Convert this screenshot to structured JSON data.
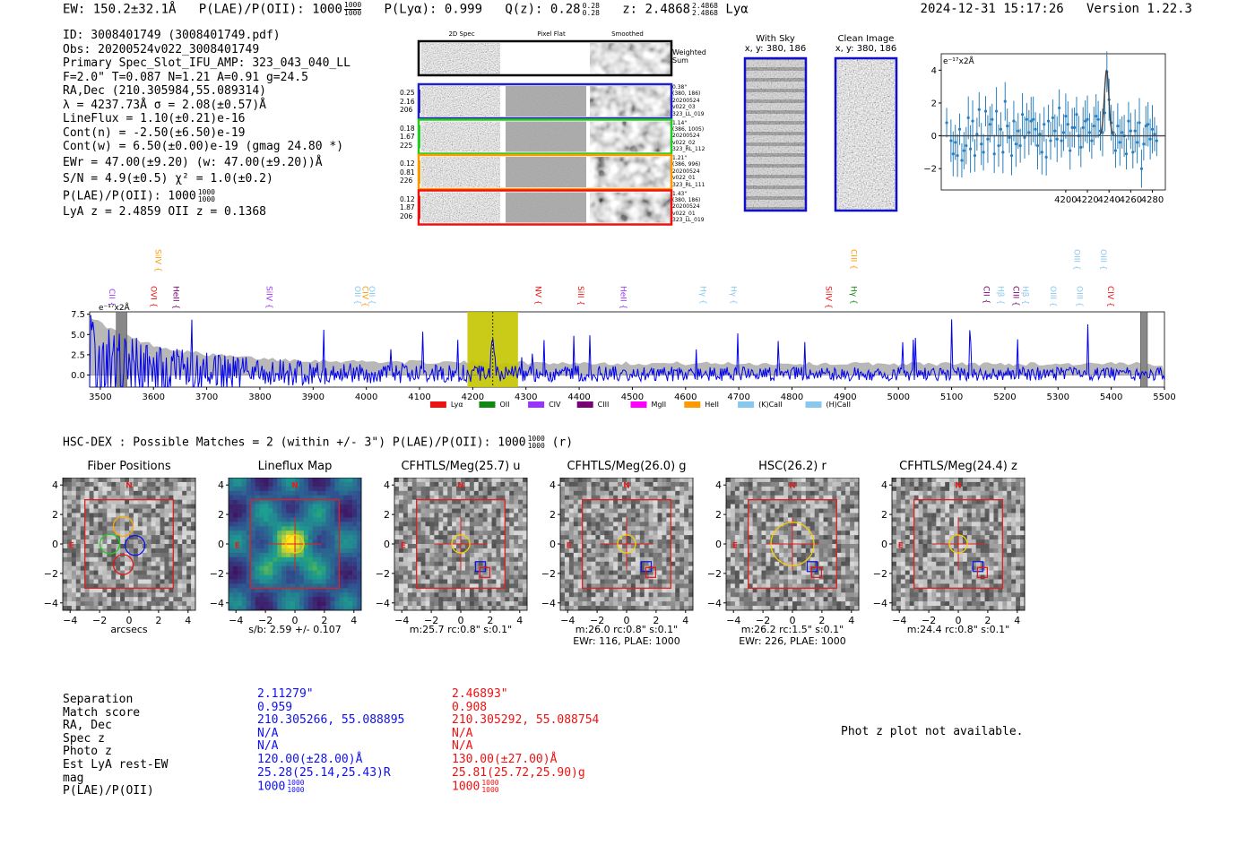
{
  "header": {
    "ew": "EW: 150.2±32.1Å",
    "plae_label": "P(LAE)/P(OII): 1000",
    "plae_frac_top": "1000",
    "plae_frac_bot": "1000",
    "plya": "P(Lyα): 0.999",
    "qz": "Q(z): 0.28",
    "qz_top": "0.28",
    "qz_bot": "0.28",
    "z": "z: 2.4868",
    "z_top": "2.4868",
    "z_bot": "2.4868",
    "line": "Lyα",
    "timestamp": "2024-12-31 15:17:26",
    "version": "Version 1.22.3"
  },
  "info": {
    "lines": [
      "ID: 3008401749 (3008401749.pdf)",
      "Obs: 20200524v022_3008401749",
      "Primary Spec_Slot_IFU_AMP: 323_043_040_LL",
      "F=2.0\"  T=0.087  N=1.21  A=0.91  g=24.5",
      "RA,Dec (210.305984,55.089314)",
      "λ = 4237.73Å   σ = 2.08(±0.57)Å",
      "LineFlux = 1.10(±0.21)e-16",
      "Cont(n) = -2.50(±6.50)e-19",
      "Cont(w) = 6.50(±0.00)e-19 (gmag 24.80 *)",
      "EWr = 47.00(±9.20) (w: 47.00(±9.20))Å",
      "S/N = 4.9(±0.5)  χ² = 1.0(±0.2)"
    ],
    "plae_line": "P(LAE)/P(OII): 1000",
    "plae_top": "1000",
    "plae_bot": "1000",
    "z_line": "LyA z = 2.4859  OII z = 0.1368"
  },
  "cutouts": {
    "col_headers": [
      "2D Spec",
      "Pixel Flat",
      "Smoothed"
    ],
    "weighted_label": "Weighted\nSum",
    "rows": [
      {
        "color": "#1f1fcc",
        "left": [
          "0.25",
          "2.16",
          "206"
        ],
        "right": [
          "0.38\"",
          "(380, 186)",
          "20200524",
          "v022_03",
          "323_LL_019"
        ]
      },
      {
        "color": "#22cc22",
        "left": [
          "0.18",
          "1.67",
          "225"
        ],
        "right": [
          "1.14\"",
          "(386, 1005)",
          "20200524",
          "v022_02",
          "323_RL_112"
        ]
      },
      {
        "color": "#ff9900",
        "left": [
          "0.12",
          "0.81",
          "226"
        ],
        "right": [
          "1.21\"",
          "(386, 996)",
          "20200524",
          "v022_01",
          "323_RL_111"
        ]
      },
      {
        "color": "#ee1111",
        "left": [
          "0.12",
          "1.87",
          "206"
        ],
        "right": [
          "1.43\"",
          "(380, 186)",
          "20200524",
          "v022_01",
          "323_LL_019"
        ]
      }
    ],
    "with_sky_title": "With Sky",
    "with_sky_sub": "x, y: 380, 186",
    "clean_title": "Clean Image",
    "clean_sub": "x, y: 380, 186"
  },
  "chart_data": [
    {
      "type": "scatter",
      "title": "",
      "scale_label": "e⁻¹⁷x2Å",
      "xlim": [
        4085,
        4292
      ],
      "ylim": [
        -3.3,
        5.0
      ],
      "xticks": [
        "4200",
        "4220",
        "4240",
        "4260",
        "4280"
      ],
      "yticks": [
        "-2",
        "0",
        "2",
        "4"
      ],
      "points": {
        "x": [
          4090,
          4094,
          4096,
          4098,
          4100,
          4102,
          4104,
          4106,
          4108,
          4110,
          4112,
          4114,
          4116,
          4118,
          4120,
          4122,
          4124,
          4126,
          4128,
          4130,
          4132,
          4134,
          4136,
          4138,
          4140,
          4142,
          4144,
          4146,
          4148,
          4150,
          4152,
          4154,
          4156,
          4158,
          4160,
          4162,
          4164,
          4166,
          4168,
          4170,
          4172,
          4174,
          4176,
          4178,
          4180,
          4182,
          4184,
          4186,
          4188,
          4190,
          4192,
          4194,
          4196,
          4198,
          4200,
          4202,
          4204,
          4206,
          4208,
          4210,
          4212,
          4214,
          4216,
          4218,
          4220,
          4222,
          4224,
          4226,
          4228,
          4230,
          4232,
          4234,
          4236,
          4238,
          4240,
          4242,
          4244,
          4246,
          4248,
          4250,
          4252,
          4254,
          4256,
          4258,
          4260,
          4262,
          4264,
          4266,
          4268,
          4270,
          4272,
          4274,
          4276,
          4278,
          4280,
          4282,
          4284
        ],
        "y": [
          0.8,
          -0.3,
          -1.1,
          -0.4,
          -1.2,
          0.4,
          -1.5,
          -0.9,
          -0.6,
          1.1,
          -0.8,
          0.9,
          -1.2,
          0.1,
          1.6,
          -0.5,
          -1.0,
          1.5,
          -0.2,
          0.7,
          1.0,
          -1.1,
          1.5,
          -0.6,
          0.4,
          -1.0,
          2.1,
          0.6,
          -0.1,
          -1.2,
          0.9,
          -0.5,
          0.3,
          -0.6,
          1.3,
          -0.1,
          1.0,
          0.2,
          0.9,
          1.0,
          0.4,
          -0.6,
          0.1,
          -1.0,
          0.7,
          -1.3,
          0.9,
          -0.3,
          1.1,
          0.3,
          -0.2,
          1.7,
          -0.3,
          0.2,
          1.2,
          0.7,
          -0.9,
          0.5,
          0.5,
          1.3,
          0.0,
          -0.7,
          0.5,
          0.9,
          1.0,
          0.2,
          -0.3,
          0.6,
          1.2,
          1.0,
          0.3,
          0.2,
          1.4,
          3.9,
          2.2,
          0.8,
          0.2,
          -0.9,
          0.6,
          -0.4,
          0.2,
          0.0,
          -1.1,
          0.9,
          0.3,
          -1.0,
          0.3,
          -0.4,
          0.8,
          -2.0,
          -0.5,
          0.6,
          0.7,
          -0.2,
          0.4,
          0.1,
          -0.3
        ]
      },
      "fit": {
        "center": 4237.7,
        "sigma": 2.08,
        "amplitude": 4.0,
        "continuum": 0.0
      }
    },
    {
      "type": "line",
      "title": "",
      "scale_label": "e⁻¹⁷x2Å",
      "xlim": [
        3480,
        5500
      ],
      "ylim": [
        -1.5,
        7.8
      ],
      "xticks": [
        "3500",
        "3600",
        "3700",
        "3800",
        "3900",
        "4000",
        "4100",
        "4200",
        "4300",
        "4400",
        "4500",
        "4600",
        "4700",
        "4800",
        "4900",
        "5000",
        "5100",
        "5200",
        "5300",
        "5400",
        "5500"
      ],
      "yticks": [
        "0.0",
        "2.5",
        "5.0",
        "7.5"
      ],
      "highlight_range": [
        4190,
        4285
      ],
      "line_marker": 4237.7,
      "masked_bands": [
        [
          3530,
          3550
        ],
        [
          5455,
          5468
        ]
      ],
      "legend": [
        {
          "label": "Lyα",
          "color": "#ee1111"
        },
        {
          "label": "OII",
          "color": "#118811"
        },
        {
          "label": "CIV",
          "color": "#9933ff"
        },
        {
          "label": "CIII",
          "color": "#770077"
        },
        {
          "label": "MgII",
          "color": "#ff00ff"
        },
        {
          "label": "HeII",
          "color": "#ff9900"
        },
        {
          "label": "(K)CaII",
          "color": "#88c8ee"
        },
        {
          "label": "(H)CaII",
          "color": "#88c8ee"
        }
      ],
      "line_labels": [
        {
          "name": "CII",
          "x": 3521,
          "color": "#9933ff",
          "row": 2
        },
        {
          "name": "SiIV",
          "x": 3608,
          "color": "#ff9900",
          "row": 0
        },
        {
          "name": "OVI",
          "x": 3600,
          "color": "#ee1111",
          "row": 1
        },
        {
          "name": "HeII",
          "x": 3642,
          "color": "#770077",
          "row": 1
        },
        {
          "name": "SiIV",
          "x": 3817,
          "color": "#9933ff",
          "row": 1
        },
        {
          "name": "OII",
          "x": 3983,
          "color": "#88c8ee",
          "row": 1
        },
        {
          "name": "CIV",
          "x": 3997,
          "color": "#ff9900",
          "row": 1
        },
        {
          "name": "OII",
          "x": 4010,
          "color": "#88c8ee",
          "row": 1
        },
        {
          "name": "NV",
          "x": 4322,
          "color": "#ee1111",
          "row": 1
        },
        {
          "name": "SiII",
          "x": 4402,
          "color": "#ee1111",
          "row": 1
        },
        {
          "name": "HeII",
          "x": 4482,
          "color": "#9933ff",
          "row": 1
        },
        {
          "name": "Hγ",
          "x": 4632,
          "color": "#88c8ee",
          "row": 1
        },
        {
          "name": "Hγ",
          "x": 4690,
          "color": "#88c8ee",
          "row": 1
        },
        {
          "name": "SiIV",
          "x": 4868,
          "color": "#ee1111",
          "row": 1
        },
        {
          "name": "CIII",
          "x": 4915,
          "color": "#ff9900",
          "row": 0
        },
        {
          "name": "Hγ",
          "x": 4915,
          "color": "#118811",
          "row": 1
        },
        {
          "name": "CII",
          "x": 5165,
          "color": "#770077",
          "row": 1
        },
        {
          "name": "Hβ",
          "x": 5192,
          "color": "#88c8ee",
          "row": 1
        },
        {
          "name": "CIII",
          "x": 5220,
          "color": "#770077",
          "row": 1
        },
        {
          "name": "Hβ",
          "x": 5238,
          "color": "#88c8ee",
          "row": 1
        },
        {
          "name": "OIII",
          "x": 5290,
          "color": "#88c8ee",
          "row": 1
        },
        {
          "name": "OIII",
          "x": 5335,
          "color": "#88c8ee",
          "row": 0
        },
        {
          "name": "OIII",
          "x": 5340,
          "color": "#88c8ee",
          "row": 1
        },
        {
          "name": "OIII",
          "x": 5385,
          "color": "#88c8ee",
          "row": 0
        },
        {
          "name": "CIV",
          "x": 5398,
          "color": "#ee1111",
          "row": 1
        }
      ]
    }
  ],
  "hsc": {
    "title": "HSC-DEX : Possible Matches = 2 (within +/- 3\")  P(LAE)/P(OII): 1000",
    "frac_top": "1000",
    "frac_bot": "1000",
    "suffix": "(r)",
    "panels": [
      {
        "title": "Fiber Positions",
        "cap1": "arcsecs",
        "cap2": "",
        "ticks": [
          "4",
          "2",
          "0",
          "−2",
          "−4"
        ],
        "xticks": [
          "−4",
          "−2",
          "0",
          "2",
          "4"
        ],
        "n_label": "N",
        "e_label": "E"
      },
      {
        "title": "Lineflux Map",
        "cap1": "s/b: 2.59 +/- 0.107",
        "cap2": "",
        "ticks": [
          "4",
          "2",
          "0",
          "−2",
          "−4"
        ],
        "xticks": [
          "−4",
          "−2",
          "0",
          "2",
          "4"
        ],
        "n_label": "N",
        "e_label": "E"
      },
      {
        "title": "CFHTLS/Meg(25.7) u",
        "cap1": "m:25.7 rc:0.8\"  s:0.1\"",
        "cap2": "",
        "ticks": [
          "4",
          "2",
          "0",
          "−2",
          "−4"
        ],
        "xticks": [
          "−4",
          "−2",
          "0",
          "2",
          "4"
        ],
        "n_label": "N",
        "e_label": "E"
      },
      {
        "title": "CFHTLS/Meg(26.0) g",
        "cap1": "m:26.0 rc:0.8\"  s:0.1\"",
        "cap2": "EWr: 116, PLAE: 1000",
        "ticks": [
          "4",
          "2",
          "0",
          "−2",
          "−4"
        ],
        "xticks": [
          "−4",
          "−2",
          "0",
          "2",
          "4"
        ],
        "n_label": "N",
        "e_label": "E"
      },
      {
        "title": "HSC(26.2) r",
        "cap1": "m:26.2 rc:1.5\"  s:0.1\"",
        "cap2": "EWr: 226, PLAE: 1000",
        "ticks": [
          "4",
          "2",
          "0",
          "−2",
          "−4"
        ],
        "xticks": [
          "−4",
          "−2",
          "0",
          "2",
          "4"
        ],
        "n_label": "N",
        "e_label": "E"
      },
      {
        "title": "CFHTLS/Meg(24.4) z",
        "cap1": "m:24.4 rc:0.8\"  s:0.1\"",
        "cap2": "",
        "ticks": [
          "4",
          "2",
          "0",
          "−2",
          "−4"
        ],
        "xticks": [
          "−4",
          "−2",
          "0",
          "2",
          "4"
        ],
        "n_label": "N",
        "e_label": "E"
      }
    ]
  },
  "match_table": {
    "labels": [
      "Separation",
      "Match score",
      "RA, Dec",
      "Spec z",
      "Photo z",
      "Est LyA rest-EW",
      "mag",
      "P(LAE)/P(OII)"
    ],
    "col1_color": "#1010ee",
    "col2_color": "#ee1111",
    "col1": [
      "2.11279\"",
      "0.959",
      "210.305266, 55.088895",
      "N/A",
      "N/A",
      "120.00(±28.00)Å",
      "25.28(25.14,25.43)R",
      "1000"
    ],
    "col2": [
      "2.46893\"",
      "0.908",
      "210.305292, 55.088754",
      "N/A",
      "N/A",
      "130.00(±27.00)Å",
      "25.81(25.72,25.90)g",
      "1000"
    ],
    "plae_top": "1000",
    "plae_bot": "1000",
    "photz_note": "Phot z plot not available."
  }
}
